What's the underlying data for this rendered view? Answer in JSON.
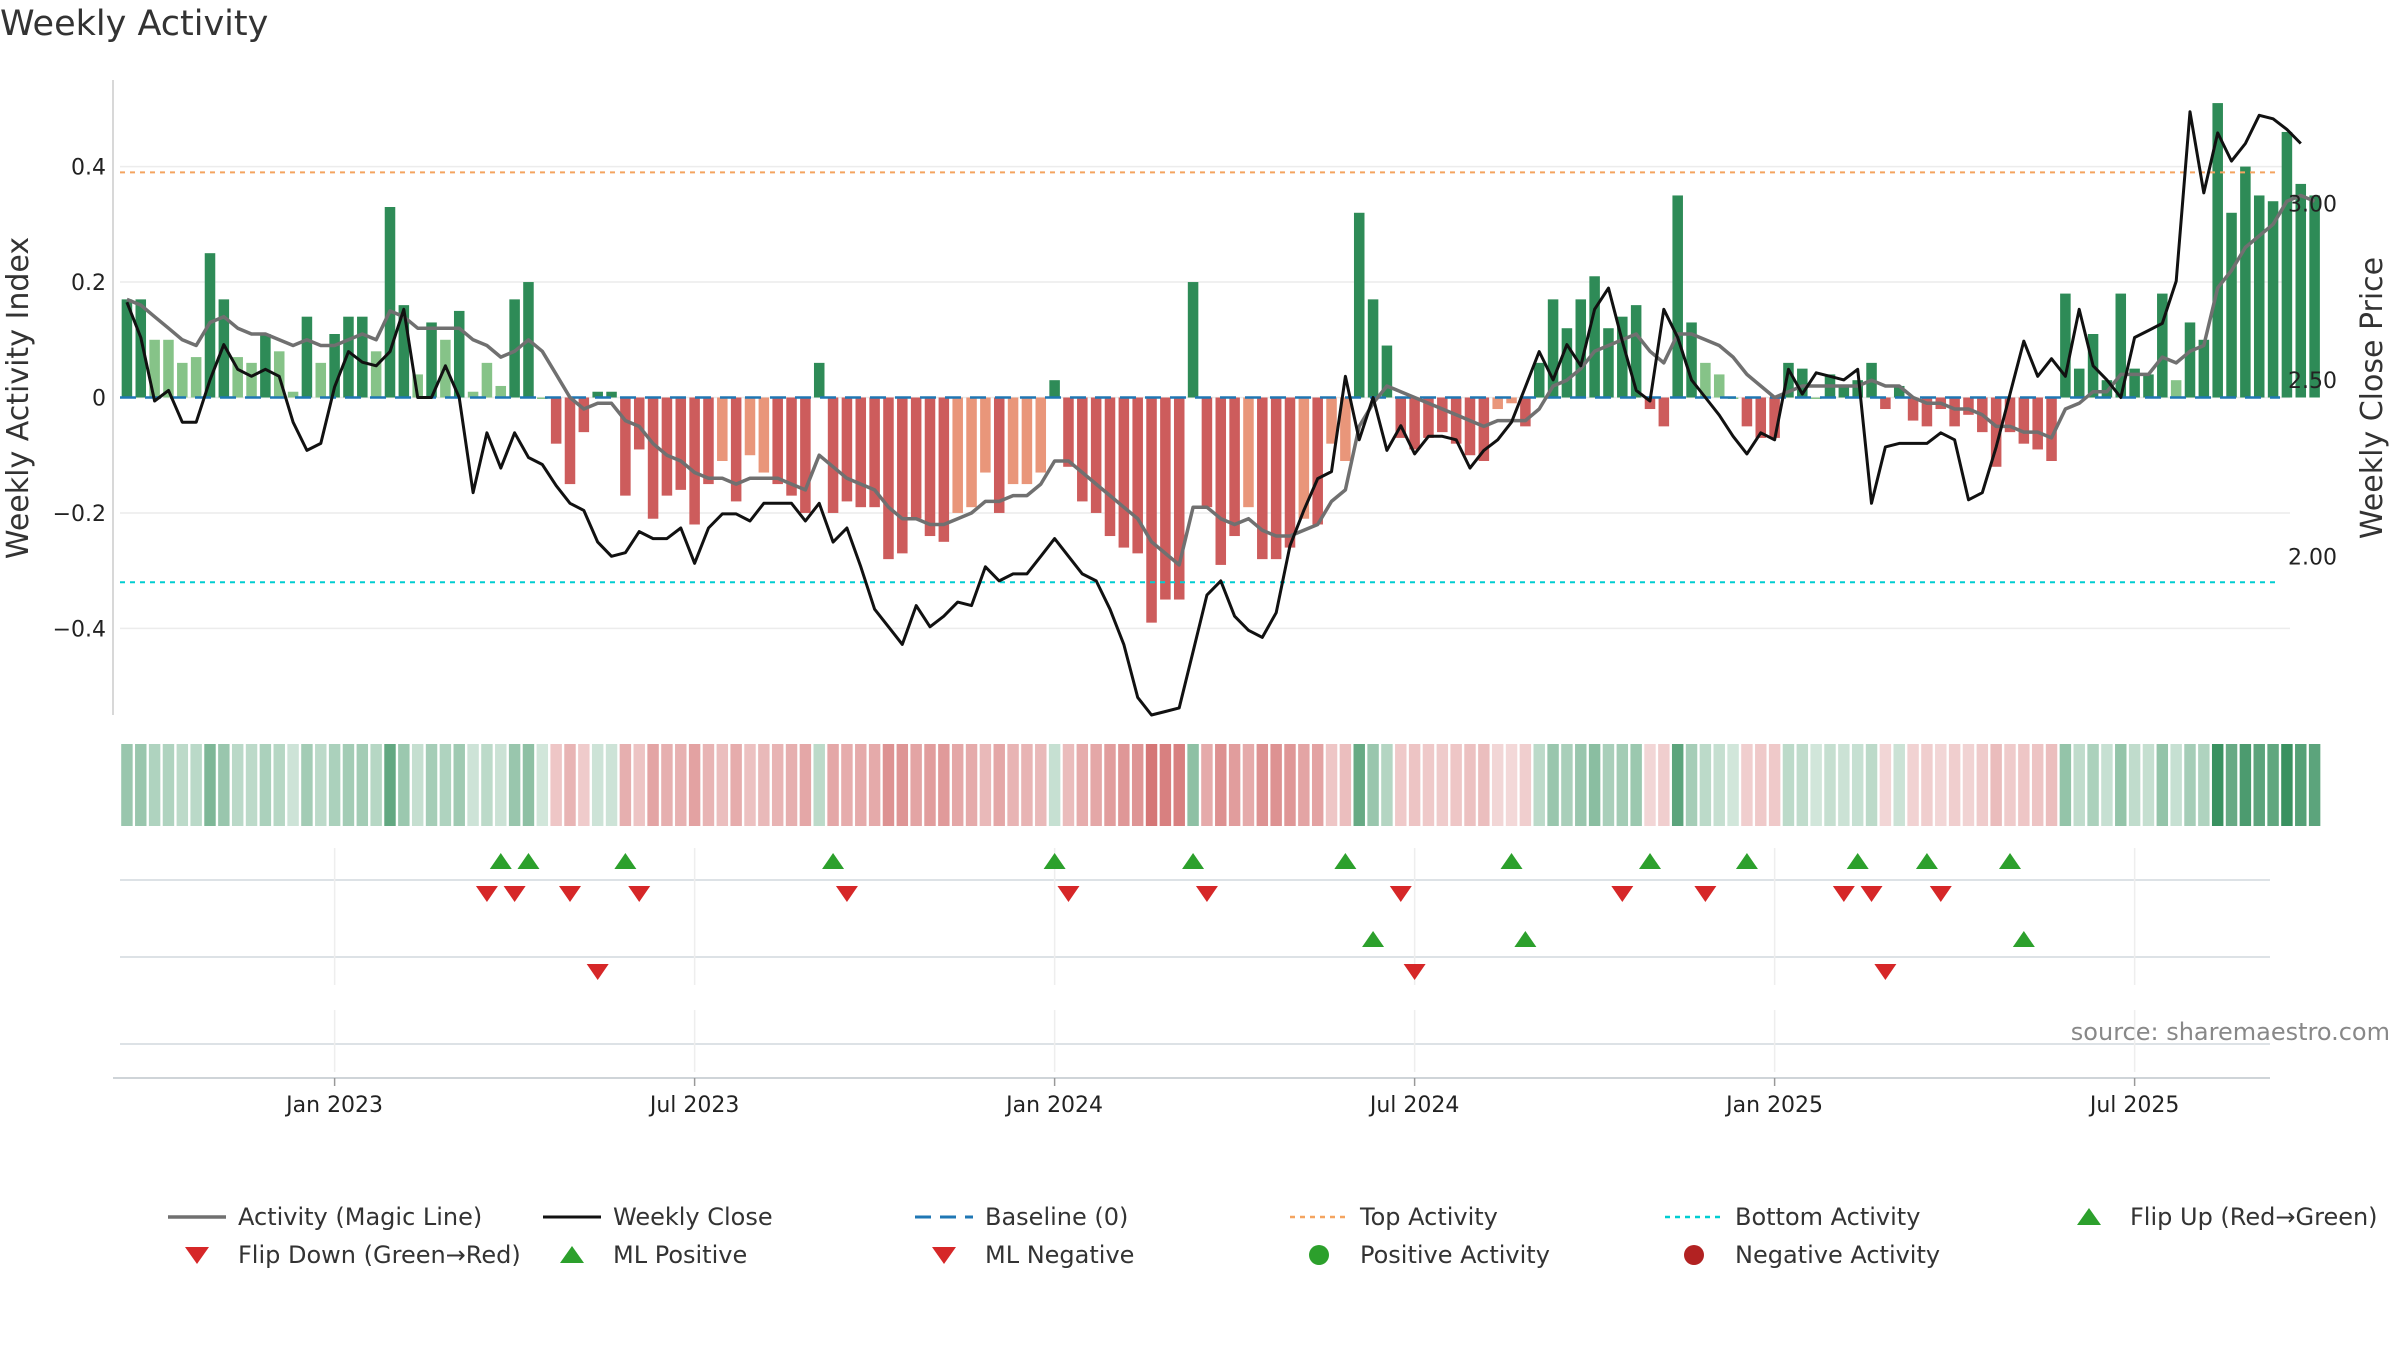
{
  "chart_data": {
    "type": "bar",
    "title": "Weekly Activity",
    "ylabel": "Weekly Activity Index",
    "y2label": "Weekly Close Price",
    "ylim": [
      -0.55,
      0.55
    ],
    "y2lim": [
      1.55,
      3.35
    ],
    "yticks": [
      {
        "v": 0.4,
        "label": "0.4"
      },
      {
        "v": 0.2,
        "label": "0.2"
      },
      {
        "v": 0,
        "label": "0"
      },
      {
        "v": -0.2,
        "label": "−0.2"
      },
      {
        "v": -0.4,
        "label": "−0.4"
      }
    ],
    "y2ticks": [
      {
        "v": 3.0,
        "label": "3.00"
      },
      {
        "v": 2.5,
        "label": "2.50"
      },
      {
        "v": 2.0,
        "label": "2.00"
      }
    ],
    "xticks": [
      {
        "i": 15,
        "label": "Jan 2023"
      },
      {
        "i": 41,
        "label": "Jul 2023"
      },
      {
        "i": 67,
        "label": "Jan 2024"
      },
      {
        "i": 93,
        "label": "Jul 2024"
      },
      {
        "i": 119,
        "label": "Jan 2025"
      },
      {
        "i": 145,
        "label": "Jul 2025"
      }
    ],
    "top_activity": 0.39,
    "bottom_activity": -0.32,
    "n_weeks": 156,
    "activity": [
      0.17,
      0.17,
      0.1,
      0.1,
      0.06,
      0.07,
      0.25,
      0.17,
      0.07,
      0.06,
      0.11,
      0.08,
      0.01,
      0.14,
      0.06,
      0.11,
      0.14,
      0.14,
      0.08,
      0.33,
      0.16,
      0.04,
      0.13,
      0.1,
      0.15,
      0.01,
      0.06,
      0.02,
      0.17,
      0.2,
      0.0,
      -0.08,
      -0.15,
      -0.06,
      0.01,
      0.01,
      -0.17,
      -0.09,
      -0.21,
      -0.17,
      -0.16,
      -0.22,
      -0.15,
      -0.11,
      -0.18,
      -0.1,
      -0.13,
      -0.15,
      -0.17,
      -0.2,
      0.06,
      -0.2,
      -0.18,
      -0.19,
      -0.19,
      -0.28,
      -0.27,
      -0.21,
      -0.24,
      -0.25,
      -0.2,
      -0.19,
      -0.13,
      -0.2,
      -0.15,
      -0.15,
      -0.13,
      0.03,
      -0.12,
      -0.18,
      -0.2,
      -0.24,
      -0.26,
      -0.27,
      -0.39,
      -0.35,
      -0.35,
      0.2,
      -0.19,
      -0.29,
      -0.24,
      -0.19,
      -0.28,
      -0.28,
      -0.26,
      -0.21,
      -0.22,
      -0.08,
      -0.11,
      0.32,
      0.17,
      0.09,
      -0.07,
      -0.09,
      -0.07,
      -0.06,
      -0.08,
      -0.1,
      -0.11,
      -0.02,
      -0.01,
      -0.05,
      0.06,
      0.17,
      0.12,
      0.17,
      0.21,
      0.12,
      0.14,
      0.16,
      -0.02,
      -0.05,
      0.35,
      0.13,
      0.06,
      0.04,
      0.0,
      -0.05,
      -0.07,
      -0.07,
      0.06,
      0.05,
      0.0,
      0.04,
      0.02,
      0.03,
      0.06,
      -0.02,
      0.02,
      -0.04,
      -0.05,
      -0.02,
      -0.05,
      -0.03,
      -0.06,
      -0.12,
      -0.06,
      -0.08,
      -0.09,
      -0.11,
      0.18,
      0.05,
      0.11,
      0.03,
      0.18,
      0.05,
      0.04,
      0.18,
      0.03,
      0.13,
      0.1,
      0.51,
      0.32,
      0.4,
      0.35,
      0.34,
      0.46,
      0.37,
      0.35
    ],
    "magic_line": [
      0.17,
      0.16,
      0.14,
      0.12,
      0.1,
      0.09,
      0.13,
      0.14,
      0.12,
      0.11,
      0.11,
      0.1,
      0.09,
      0.1,
      0.09,
      0.09,
      0.1,
      0.11,
      0.1,
      0.15,
      0.14,
      0.12,
      0.12,
      0.12,
      0.12,
      0.1,
      0.09,
      0.07,
      0.08,
      0.1,
      0.08,
      0.04,
      0.0,
      -0.02,
      -0.01,
      -0.01,
      -0.04,
      -0.05,
      -0.08,
      -0.1,
      -0.11,
      -0.13,
      -0.14,
      -0.14,
      -0.15,
      -0.14,
      -0.14,
      -0.14,
      -0.15,
      -0.16,
      -0.1,
      -0.12,
      -0.14,
      -0.15,
      -0.16,
      -0.19,
      -0.21,
      -0.21,
      -0.22,
      -0.22,
      -0.21,
      -0.2,
      -0.18,
      -0.18,
      -0.17,
      -0.17,
      -0.15,
      -0.11,
      -0.11,
      -0.13,
      -0.15,
      -0.17,
      -0.19,
      -0.21,
      -0.25,
      -0.27,
      -0.29,
      -0.19,
      -0.19,
      -0.21,
      -0.22,
      -0.21,
      -0.23,
      -0.24,
      -0.24,
      -0.23,
      -0.22,
      -0.18,
      -0.16,
      -0.05,
      -0.01,
      0.02,
      0.01,
      0.0,
      -0.01,
      -0.02,
      -0.03,
      -0.04,
      -0.05,
      -0.04,
      -0.04,
      -0.04,
      -0.02,
      0.02,
      0.03,
      0.05,
      0.08,
      0.09,
      0.1,
      0.11,
      0.08,
      0.06,
      0.11,
      0.11,
      0.1,
      0.09,
      0.07,
      0.04,
      0.02,
      0.0,
      0.01,
      0.02,
      0.02,
      0.02,
      0.02,
      0.02,
      0.03,
      0.02,
      0.02,
      0.0,
      -0.01,
      -0.01,
      -0.02,
      -0.02,
      -0.03,
      -0.05,
      -0.05,
      -0.06,
      -0.06,
      -0.07,
      -0.02,
      -0.01,
      0.01,
      0.01,
      0.04,
      0.04,
      0.04,
      0.07,
      0.06,
      0.08,
      0.09,
      0.19,
      0.22,
      0.26,
      0.28,
      0.3,
      0.34,
      0.35,
      0.34
    ],
    "weekly_close": [
      2.72,
      2.62,
      2.44,
      2.47,
      2.38,
      2.38,
      2.5,
      2.6,
      2.53,
      2.51,
      2.53,
      2.51,
      2.38,
      2.3,
      2.32,
      2.48,
      2.58,
      2.55,
      2.54,
      2.58,
      2.7,
      2.45,
      2.45,
      2.54,
      2.45,
      2.18,
      2.35,
      2.25,
      2.35,
      2.28,
      2.26,
      2.2,
      2.15,
      2.13,
      2.04,
      2.0,
      2.01,
      2.07,
      2.05,
      2.05,
      2.08,
      1.98,
      2.08,
      2.12,
      2.12,
      2.1,
      2.15,
      2.15,
      2.15,
      2.1,
      2.15,
      2.04,
      2.08,
      1.97,
      1.85,
      1.8,
      1.75,
      1.86,
      1.8,
      1.83,
      1.87,
      1.86,
      1.97,
      1.93,
      1.95,
      1.95,
      2.0,
      2.05,
      2.0,
      1.95,
      1.93,
      1.85,
      1.75,
      1.6,
      1.55,
      1.56,
      1.57,
      1.73,
      1.89,
      1.93,
      1.83,
      1.79,
      1.77,
      1.84,
      2.03,
      2.13,
      2.22,
      2.24,
      2.51,
      2.33,
      2.45,
      2.3,
      2.37,
      2.29,
      2.34,
      2.34,
      2.33,
      2.25,
      2.3,
      2.33,
      2.38,
      2.48,
      2.58,
      2.5,
      2.6,
      2.54,
      2.7,
      2.76,
      2.61,
      2.47,
      2.44,
      2.7,
      2.62,
      2.5,
      2.45,
      2.4,
      2.34,
      2.29,
      2.35,
      2.33,
      2.53,
      2.46,
      2.52,
      2.51,
      2.5,
      2.53,
      2.15,
      2.31,
      2.32,
      2.32,
      2.32,
      2.35,
      2.33,
      2.16,
      2.18,
      2.31,
      2.46,
      2.61,
      2.51,
      2.56,
      2.51,
      2.7,
      2.54,
      2.5,
      2.45,
      2.62,
      2.64,
      2.66,
      2.78,
      3.26,
      3.03,
      3.2,
      3.12,
      3.17,
      3.25,
      3.24,
      3.21,
      3.17
    ],
    "heat_strip": [
      0.17,
      0.17,
      0.1,
      0.1,
      0.06,
      0.07,
      0.25,
      0.17,
      0.07,
      0.06,
      0.11,
      0.08,
      0.01,
      0.14,
      0.06,
      0.11,
      0.14,
      0.14,
      0.08,
      0.33,
      0.16,
      0.04,
      0.13,
      0.1,
      0.15,
      0.01,
      0.06,
      0.02,
      0.17,
      0.2,
      0.0,
      -0.08,
      -0.15,
      -0.06,
      0.01,
      0.01,
      -0.17,
      -0.09,
      -0.21,
      -0.17,
      -0.16,
      -0.22,
      -0.15,
      -0.11,
      -0.18,
      -0.1,
      -0.13,
      -0.15,
      -0.17,
      -0.2,
      0.06,
      -0.2,
      -0.18,
      -0.19,
      -0.19,
      -0.28,
      -0.27,
      -0.21,
      -0.24,
      -0.25,
      -0.2,
      -0.19,
      -0.13,
      -0.2,
      -0.15,
      -0.15,
      -0.13,
      0.03,
      -0.12,
      -0.18,
      -0.2,
      -0.24,
      -0.26,
      -0.27,
      -0.39,
      -0.35,
      -0.35,
      0.2,
      -0.19,
      -0.29,
      -0.24,
      -0.19,
      -0.28,
      -0.28,
      -0.26,
      -0.21,
      -0.22,
      -0.08,
      -0.11,
      0.32,
      0.17,
      0.09,
      -0.07,
      -0.09,
      -0.07,
      -0.06,
      -0.08,
      -0.1,
      -0.11,
      -0.02,
      -0.01,
      -0.05,
      0.06,
      0.17,
      0.12,
      0.17,
      0.21,
      0.12,
      0.14,
      0.16,
      -0.02,
      -0.05,
      0.35,
      0.13,
      0.06,
      0.04,
      0.0,
      -0.05,
      -0.07,
      -0.07,
      0.06,
      0.05,
      0.0,
      0.04,
      0.02,
      0.03,
      0.06,
      -0.02,
      0.02,
      -0.04,
      -0.05,
      -0.02,
      -0.05,
      -0.03,
      -0.06,
      -0.12,
      -0.06,
      -0.08,
      -0.09,
      -0.11,
      0.18,
      0.05,
      0.11,
      0.03,
      0.18,
      0.05,
      0.04,
      0.18,
      0.03,
      0.13,
      0.1,
      0.51,
      0.32,
      0.4,
      0.35,
      0.34,
      0.46,
      0.37,
      0.35
    ],
    "flip_up_weeks": [
      27,
      29,
      36,
      51,
      67,
      77,
      88,
      100,
      110,
      117,
      125,
      130,
      136
    ],
    "flip_down_weeks": [
      26,
      28,
      32,
      37,
      52,
      68,
      78,
      92,
      108,
      114,
      124,
      126,
      131
    ],
    "ml_positive_weeks": [
      90,
      101,
      137
    ],
    "ml_negative_weeks": [
      34,
      93,
      127
    ],
    "legend": [
      {
        "key": "magic",
        "label": "Activity (Magic Line)"
      },
      {
        "key": "close",
        "label": "Weekly Close"
      },
      {
        "key": "baseline",
        "label": "Baseline (0)"
      },
      {
        "key": "top",
        "label": "Top Activity"
      },
      {
        "key": "bottom",
        "label": "Bottom Activity"
      },
      {
        "key": "flipup",
        "label": "Flip Up (Red→Green)"
      },
      {
        "key": "flipdown",
        "label": "Flip Down (Green→Red)"
      },
      {
        "key": "mlpos",
        "label": "ML Positive"
      },
      {
        "key": "mlneg",
        "label": "ML Negative"
      },
      {
        "key": "posact",
        "label": "Positive Activity"
      },
      {
        "key": "negact",
        "label": "Negative Activity"
      }
    ],
    "source": "source: sharemaestro.com"
  },
  "colors": {
    "pos_dark": "#2e8b57",
    "pos_light": "#86c388",
    "neg_dark": "#cd5c5c",
    "neg_light": "#e9967a",
    "magic": "#707070",
    "close": "#111111",
    "baseline": "#1f77b4",
    "top": "#f4a460",
    "bottom": "#00ced1",
    "flip_up": "#2ca02c",
    "flip_down": "#d62728",
    "pos_dot": "#2ca02c",
    "neg_dot": "#b22222"
  }
}
